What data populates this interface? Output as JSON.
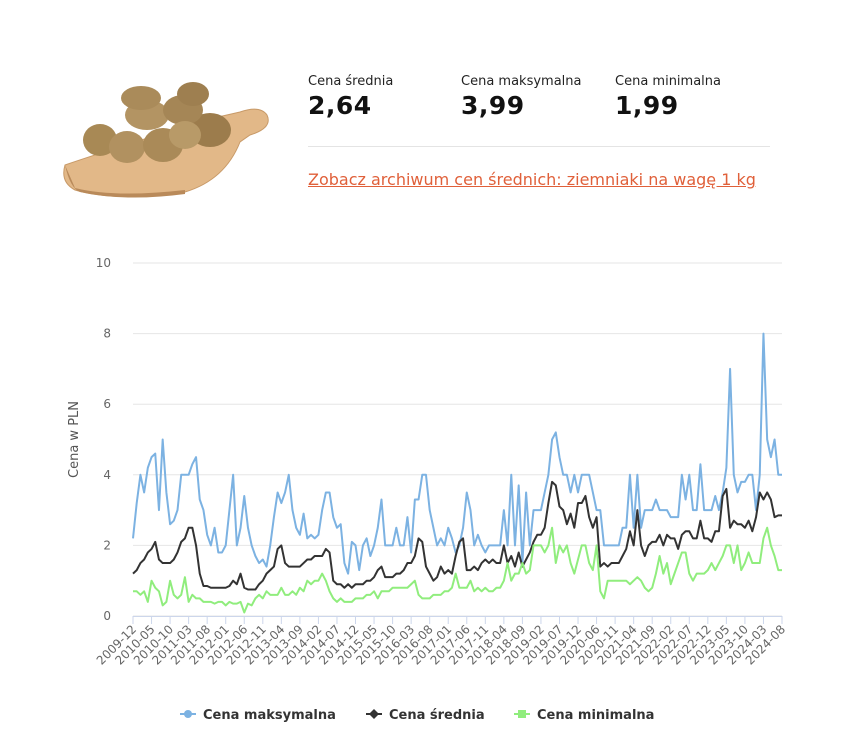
{
  "header": {
    "stats": [
      {
        "label": "Cena średnia",
        "value": "2,64"
      },
      {
        "label": "Cena maksymalna",
        "value": "3,99"
      },
      {
        "label": "Cena minimalna",
        "value": "1,99"
      }
    ],
    "link": "Zobacz archiwum cen średnich: ziemniaki na wagę 1 kg"
  },
  "chart_data": {
    "type": "line",
    "y_label": "Cena w PLN",
    "ylim": [
      0,
      10
    ],
    "yticks": [
      0,
      2,
      4,
      6,
      8,
      10
    ],
    "grid": true,
    "legend": "bottom",
    "categories": [
      "2009-12",
      null,
      null,
      null,
      null,
      "2010-05",
      null,
      null,
      null,
      null,
      "2010-10",
      null,
      null,
      null,
      null,
      "2011-03",
      null,
      null,
      null,
      null,
      "2011-08",
      null,
      null,
      null,
      null,
      "2012-01",
      null,
      null,
      null,
      null,
      "2012-06",
      null,
      null,
      null,
      null,
      "2012-11",
      null,
      null,
      null,
      null,
      "2013-04",
      null,
      null,
      null,
      null,
      "2013-09",
      null,
      null,
      null,
      null,
      "2014-02",
      null,
      null,
      null,
      null,
      "2014-07",
      null,
      null,
      null,
      null,
      "2014-12",
      null,
      null,
      null,
      null,
      "2015-05",
      null,
      null,
      null,
      null,
      "2015-10",
      null,
      null,
      null,
      null,
      "2016-03",
      null,
      null,
      null,
      null,
      "2016-08",
      null,
      null,
      null,
      null,
      "2017-01",
      null,
      null,
      null,
      null,
      "2017-06",
      null,
      null,
      null,
      null,
      "2017-11",
      null,
      null,
      null,
      null,
      "2018-04",
      null,
      null,
      null,
      null,
      "2018-09",
      null,
      null,
      null,
      null,
      "2019-02",
      null,
      null,
      null,
      null,
      "2019-07",
      null,
      null,
      null,
      null,
      "2019-12",
      null,
      null,
      null,
      null,
      "2020-06",
      null,
      null,
      null,
      null,
      "2020-11",
      null,
      null,
      null,
      null,
      "2021-04",
      null,
      null,
      null,
      null,
      "2021-09",
      null,
      null,
      null,
      null,
      "2022-02",
      null,
      null,
      null,
      null,
      "2022-07",
      null,
      null,
      null,
      null,
      "2022-12",
      null,
      null,
      null,
      null,
      "2023-05",
      null,
      null,
      null,
      null,
      "2023-10",
      null,
      null,
      null,
      null,
      "2024-03",
      null,
      null,
      null,
      null,
      "2024-08"
    ],
    "series": [
      {
        "name": "Cena maksymalna",
        "color": "#7cb2e2",
        "marker": "circle",
        "values": [
          2.2,
          3.2,
          4,
          3.5,
          4.2,
          4.5,
          4.6,
          3,
          5,
          3.5,
          2.6,
          2.7,
          3,
          4,
          4,
          4,
          4.3,
          4.5,
          3.3,
          3,
          2.3,
          2,
          2.5,
          1.8,
          1.8,
          2,
          3,
          4,
          2,
          2.5,
          3.4,
          2.5,
          2,
          1.7,
          1.5,
          1.6,
          1.4,
          2,
          2.8,
          3.5,
          3.2,
          3.5,
          4,
          3,
          2.5,
          2.3,
          2.9,
          2.2,
          2.3,
          2.2,
          2.3,
          3,
          3.5,
          3.5,
          2.8,
          2.5,
          2.6,
          1.5,
          1.2,
          2.1,
          2,
          1.3,
          2,
          2.2,
          1.7,
          2,
          2.5,
          3.3,
          2,
          2,
          2,
          2.5,
          2,
          2,
          2.8,
          1.8,
          3.3,
          3.3,
          4,
          4,
          3,
          2.5,
          2,
          2.2,
          2,
          2.5,
          2.2,
          1.8,
          2,
          2.5,
          3.5,
          3,
          2,
          2.3,
          2,
          1.8,
          2,
          2,
          2,
          2,
          3,
          2,
          4,
          2,
          3.7,
          1.5,
          3.5,
          2,
          3,
          3,
          3,
          3.5,
          4,
          5,
          5.2,
          4.5,
          4,
          4,
          3.5,
          4,
          3.5,
          4,
          4,
          4,
          3.5,
          3,
          3,
          2,
          2,
          2,
          2,
          2,
          2.5,
          2.5,
          4,
          2.5,
          4,
          2.5,
          3,
          3,
          3,
          3.3,
          3,
          3,
          3,
          2.8,
          2.8,
          2.8,
          4,
          3.3,
          4,
          3,
          3,
          4.3,
          3,
          3,
          3,
          3.4,
          3,
          3.5,
          4.2,
          7,
          4,
          3.5,
          3.8,
          3.8,
          4,
          4,
          3,
          4,
          8,
          5,
          4.5,
          5,
          4,
          4
        ]
      },
      {
        "name": "Cena średnia",
        "color": "#333333",
        "marker": "diamond",
        "values": [
          1.2,
          1.3,
          1.5,
          1.6,
          1.8,
          1.9,
          2.1,
          1.6,
          1.5,
          1.5,
          1.5,
          1.6,
          1.8,
          2.1,
          2.2,
          2.5,
          2.5,
          2,
          1.2,
          0.85,
          0.85,
          0.8,
          0.8,
          0.8,
          0.8,
          0.8,
          0.85,
          1,
          0.9,
          1.2,
          0.8,
          0.75,
          0.75,
          0.75,
          0.9,
          1,
          1.2,
          1.3,
          1.4,
          1.9,
          2,
          1.5,
          1.4,
          1.4,
          1.4,
          1.4,
          1.5,
          1.6,
          1.6,
          1.7,
          1.7,
          1.7,
          1.9,
          1.8,
          1,
          0.9,
          0.9,
          0.8,
          0.9,
          0.8,
          0.9,
          0.9,
          0.9,
          1,
          1,
          1.1,
          1.3,
          1.4,
          1.1,
          1.1,
          1.1,
          1.2,
          1.2,
          1.3,
          1.5,
          1.5,
          1.7,
          2.2,
          2.1,
          1.4,
          1.2,
          1,
          1.1,
          1.4,
          1.2,
          1.3,
          1.2,
          1.7,
          2.1,
          2.2,
          1.3,
          1.3,
          1.4,
          1.3,
          1.5,
          1.6,
          1.5,
          1.6,
          1.5,
          1.5,
          2,
          1.5,
          1.7,
          1.4,
          1.8,
          1.4,
          1.6,
          1.8,
          2.1,
          2.3,
          2.3,
          2.5,
          3.2,
          3.8,
          3.7,
          3.1,
          3,
          2.6,
          2.9,
          2.5,
          3.2,
          3.2,
          3.4,
          2.8,
          2.5,
          2.8,
          1.4,
          1.5,
          1.4,
          1.5,
          1.5,
          1.5,
          1.7,
          1.9,
          2.4,
          2,
          3,
          2,
          1.7,
          2,
          2.1,
          2.1,
          2.3,
          2,
          2.3,
          2.2,
          2.2,
          1.9,
          2.3,
          2.4,
          2.4,
          2.2,
          2.2,
          2.7,
          2.2,
          2.2,
          2.1,
          2.4,
          2.4,
          3.4,
          3.6,
          2.5,
          2.7,
          2.6,
          2.6,
          2.5,
          2.7,
          2.4,
          2.8,
          3.5,
          3.3,
          3.5,
          3.3,
          2.8,
          2.85,
          2.85
        ]
      },
      {
        "name": "Cena minimalna",
        "color": "#90ed7d",
        "marker": "square",
        "values": [
          0.7,
          0.7,
          0.6,
          0.7,
          0.4,
          1,
          0.8,
          0.7,
          0.3,
          0.4,
          1,
          0.6,
          0.5,
          0.6,
          1.1,
          0.4,
          0.6,
          0.5,
          0.5,
          0.4,
          0.4,
          0.4,
          0.35,
          0.4,
          0.4,
          0.3,
          0.4,
          0.35,
          0.35,
          0.4,
          0.1,
          0.35,
          0.3,
          0.5,
          0.6,
          0.5,
          0.7,
          0.6,
          0.6,
          0.6,
          0.8,
          0.6,
          0.6,
          0.7,
          0.6,
          0.8,
          0.7,
          1,
          0.9,
          1,
          1,
          1.2,
          1,
          0.7,
          0.5,
          0.4,
          0.5,
          0.4,
          0.4,
          0.4,
          0.5,
          0.5,
          0.5,
          0.6,
          0.6,
          0.7,
          0.5,
          0.7,
          0.7,
          0.7,
          0.8,
          0.8,
          0.8,
          0.8,
          0.8,
          0.9,
          1,
          0.6,
          0.5,
          0.5,
          0.5,
          0.6,
          0.6,
          0.6,
          0.7,
          0.7,
          0.8,
          1.2,
          0.8,
          0.8,
          0.8,
          1,
          0.7,
          0.8,
          0.7,
          0.8,
          0.7,
          0.7,
          0.8,
          0.8,
          1,
          1.5,
          1,
          1.2,
          1.2,
          1.5,
          1.2,
          1.3,
          2,
          2,
          2,
          1.8,
          2,
          2.5,
          1.5,
          2,
          1.8,
          2,
          1.5,
          1.2,
          1.6,
          2,
          2,
          1.5,
          1.3,
          2,
          0.7,
          0.5,
          1,
          1,
          1,
          1,
          1,
          1,
          0.9,
          1,
          1.1,
          1,
          0.8,
          0.7,
          0.8,
          1.2,
          1.7,
          1.2,
          1.5,
          0.9,
          1.2,
          1.5,
          1.8,
          1.8,
          1.2,
          1,
          1.2,
          1.2,
          1.2,
          1.3,
          1.5,
          1.3,
          1.5,
          1.7,
          2,
          2,
          1.5,
          2,
          1.3,
          1.5,
          1.8,
          1.5,
          1.5,
          1.5,
          2.2,
          2.5,
          2,
          1.7,
          1.3,
          1.3
        ]
      }
    ]
  }
}
